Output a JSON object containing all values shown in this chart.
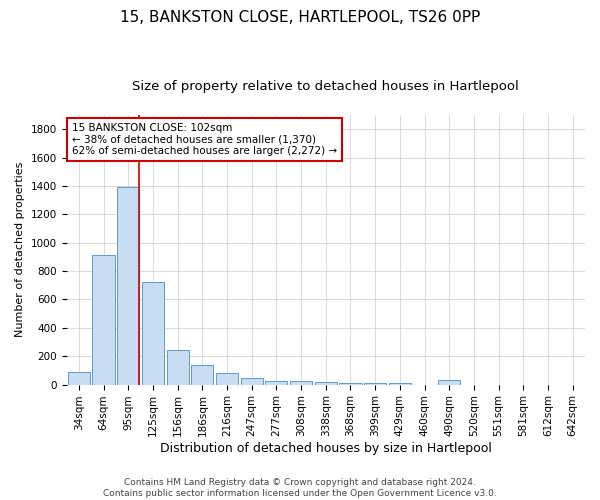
{
  "title1": "15, BANKSTON CLOSE, HARTLEPOOL, TS26 0PP",
  "title2": "Size of property relative to detached houses in Hartlepool",
  "xlabel": "Distribution of detached houses by size in Hartlepool",
  "ylabel": "Number of detached properties",
  "categories": [
    "34sqm",
    "64sqm",
    "95sqm",
    "125sqm",
    "156sqm",
    "186sqm",
    "216sqm",
    "247sqm",
    "277sqm",
    "308sqm",
    "338sqm",
    "368sqm",
    "399sqm",
    "429sqm",
    "460sqm",
    "490sqm",
    "520sqm",
    "551sqm",
    "581sqm",
    "612sqm",
    "642sqm"
  ],
  "values": [
    90,
    910,
    1390,
    720,
    245,
    140,
    80,
    48,
    28,
    25,
    17,
    13,
    10,
    8,
    0,
    30,
    0,
    0,
    0,
    0,
    0
  ],
  "bar_color": "#c9ddf2",
  "bar_edge_color": "#5b9bd5",
  "vline_color": "#cc0000",
  "annotation_text": "15 BANKSTON CLOSE: 102sqm\n← 38% of detached houses are smaller (1,370)\n62% of semi-detached houses are larger (2,272) →",
  "annotation_box_color": "#cc0000",
  "ylim": [
    0,
    1900
  ],
  "yticks": [
    0,
    200,
    400,
    600,
    800,
    1000,
    1200,
    1400,
    1600,
    1800
  ],
  "grid_color": "#cccccc",
  "bg_color": "#ffffff",
  "footer_text": "Contains HM Land Registry data © Crown copyright and database right 2024.\nContains public sector information licensed under the Open Government Licence v3.0.",
  "title1_fontsize": 11,
  "title2_fontsize": 9.5,
  "xlabel_fontsize": 9,
  "ylabel_fontsize": 8,
  "tick_fontsize": 7.5,
  "annotation_fontsize": 7.5,
  "footer_fontsize": 6.5
}
